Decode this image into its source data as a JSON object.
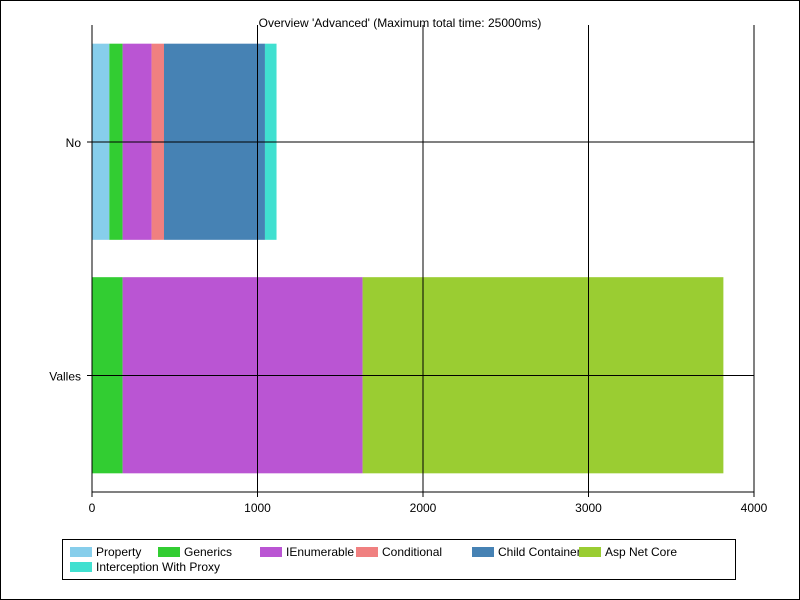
{
  "chart_data": {
    "type": "bar",
    "orientation": "horizontal",
    "stacked": true,
    "title": "Overview 'Advanced' (Maximum total time: 25000ms)",
    "categories": [
      "No",
      "Valles"
    ],
    "xlim": [
      0,
      4000
    ],
    "xticks": [
      0,
      1000,
      2000,
      3000,
      4000
    ],
    "grid": true,
    "legend_position": "bottom",
    "series": [
      {
        "name": "Property",
        "color": "#87CEEB",
        "values": [
          105,
          0
        ]
      },
      {
        "name": "Generics",
        "color": "#32CD32",
        "values": [
          80,
          185
        ]
      },
      {
        "name": "IEnumerable",
        "color": "#BA55D3",
        "values": [
          175,
          1450
        ]
      },
      {
        "name": "Conditional",
        "color": "#F08080",
        "values": [
          75,
          0
        ]
      },
      {
        "name": "Child Container",
        "color": "#4682B4",
        "values": [
          610,
          0
        ]
      },
      {
        "name": "Asp Net Core",
        "color": "#9ACD32",
        "values": [
          0,
          2180
        ]
      },
      {
        "name": "Interception With Proxy",
        "color": "#40E0D0",
        "values": [
          70,
          0
        ]
      }
    ]
  }
}
